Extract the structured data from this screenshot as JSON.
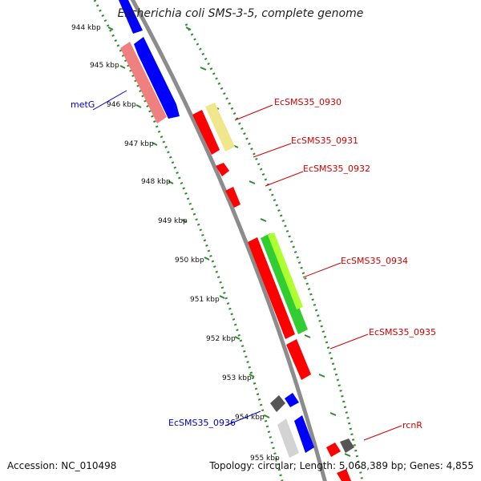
{
  "header": {
    "title": "Escherichia coli SMS-3-5, complete genome"
  },
  "footer": {
    "accession": "Accession: NC_010498",
    "summary": "Topology: circular; Length: 5,068,389 bp; Genes: 4,855"
  },
  "scale_labels": [
    "944 kbp",
    "945 kbp",
    "946 kbp",
    "947 kbp",
    "948 kbp",
    "949 kbp",
    "950 kbp",
    "951 kbp",
    "952 kbp",
    "953 kbp",
    "954 kbp",
    "955 kbp"
  ],
  "gene_labels": {
    "metG": "metG",
    "g0930": "EcSMS35_0930",
    "g0931": "EcSMS35_0931",
    "g0932": "EcSMS35_0932",
    "g0934": "EcSMS35_0934",
    "g0935": "EcSMS35_0935",
    "g0936": "EcSMS35_0936",
    "rcnR": "rcnR"
  },
  "colors": {
    "backbone": "#8c8c8c",
    "tick": "#2e8b2e",
    "red_gene": "#ff0000",
    "blue_gene": "#0000ff",
    "pink_gene": "#f08080",
    "khaki_gene": "#f0e68c",
    "green_gene": "#32cd32",
    "lightgreen_gene": "#adff2f",
    "gray_gene": "#555555",
    "lightgray_gene": "#d3d3d3",
    "red_label": "#d40000",
    "blue_label": "#0000c8"
  }
}
